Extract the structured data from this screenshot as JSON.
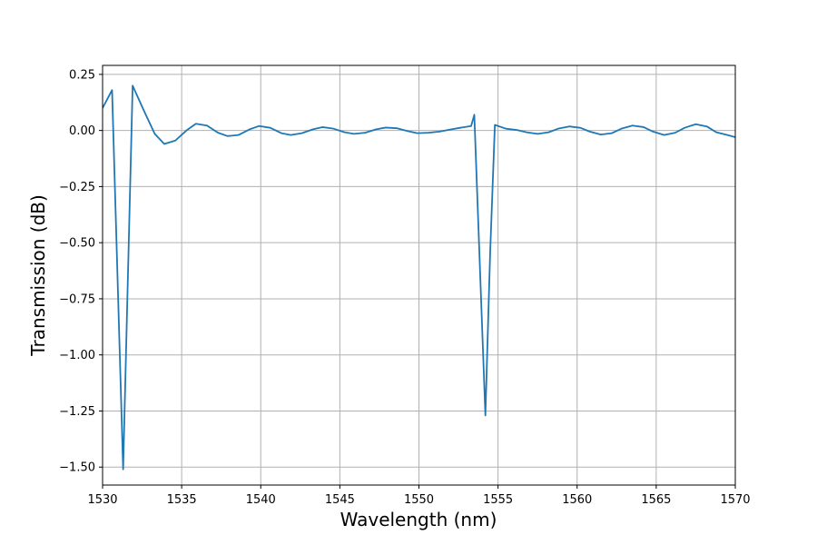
{
  "chart_data": {
    "type": "line",
    "title": "",
    "xlabel": "Wavelength (nm)",
    "ylabel": "Transmission (dB)",
    "xlim": [
      1530,
      1570
    ],
    "ylim": [
      -1.58,
      0.29
    ],
    "grid": true,
    "legend": "none",
    "x_ticks": [
      1530,
      1535,
      1540,
      1545,
      1550,
      1555,
      1560,
      1565,
      1570
    ],
    "x_tick_labels": [
      "1530",
      "1535",
      "1540",
      "1545",
      "1550",
      "1555",
      "1560",
      "1565",
      "1570"
    ],
    "y_ticks": [
      0.25,
      0.0,
      -0.25,
      -0.5,
      -0.75,
      -1.0,
      -1.25,
      -1.5
    ],
    "y_tick_labels": [
      "0.25",
      "0.00",
      "−0.25",
      "−0.50",
      "−0.75",
      "−1.00",
      "−1.25",
      "−1.50"
    ],
    "series": [
      {
        "color": "#1f77b4",
        "x": [
          1530.0,
          1530.6,
          1531.3,
          1531.9,
          1532.6,
          1533.3,
          1533.9,
          1534.6,
          1535.3,
          1535.9,
          1536.6,
          1537.3,
          1537.9,
          1538.6,
          1539.3,
          1539.9,
          1540.6,
          1541.3,
          1541.9,
          1542.6,
          1543.3,
          1543.9,
          1544.6,
          1545.3,
          1545.9,
          1546.6,
          1547.3,
          1547.9,
          1548.6,
          1549.3,
          1549.9,
          1550.6,
          1551.3,
          1551.9,
          1552.6,
          1553.3,
          1553.5,
          1554.2,
          1554.5,
          1554.8,
          1555.5,
          1556.2,
          1556.8,
          1557.5,
          1558.2,
          1558.8,
          1559.5,
          1560.2,
          1560.8,
          1561.5,
          1562.2,
          1562.8,
          1563.5,
          1564.2,
          1564.8,
          1565.5,
          1566.2,
          1566.8,
          1567.5,
          1568.2,
          1568.8,
          1569.5,
          1570.0
        ],
        "y": [
          0.1,
          0.18,
          -1.51,
          0.2,
          0.09,
          -0.015,
          -0.06,
          -0.045,
          0.0,
          0.03,
          0.022,
          -0.01,
          -0.025,
          -0.02,
          0.005,
          0.02,
          0.012,
          -0.012,
          -0.02,
          -0.012,
          0.005,
          0.015,
          0.008,
          -0.008,
          -0.015,
          -0.01,
          0.005,
          0.013,
          0.01,
          -0.003,
          -0.012,
          -0.01,
          -0.005,
          0.003,
          0.012,
          0.02,
          0.07,
          -1.27,
          -0.55,
          0.025,
          0.008,
          0.002,
          -0.008,
          -0.015,
          -0.008,
          0.008,
          0.018,
          0.012,
          -0.005,
          -0.018,
          -0.012,
          0.008,
          0.022,
          0.015,
          -0.005,
          -0.02,
          -0.01,
          0.012,
          0.028,
          0.018,
          -0.008,
          -0.02,
          -0.03
        ]
      }
    ]
  }
}
